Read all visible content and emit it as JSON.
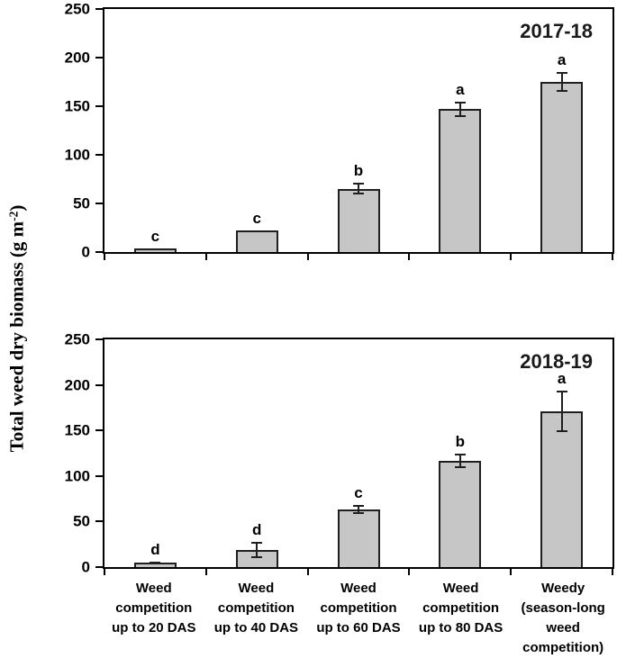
{
  "figure": {
    "y_axis_label": {
      "prefix": "Total weed dry biomass (g m",
      "superscript": "-2",
      "suffix": ")"
    }
  },
  "x_axis": {
    "tick_label_lines": [
      [
        "Weed",
        "competition",
        "up to 20 DAS"
      ],
      [
        "Weed",
        "competition",
        "up to 40 DAS"
      ],
      [
        "Weed",
        "competition",
        "up to 60 DAS"
      ],
      [
        "Weed",
        "competition",
        "up to 80 DAS"
      ],
      [
        "Weedy",
        "(season-long",
        "weed",
        "competition)"
      ]
    ]
  },
  "chart_data": [
    {
      "type": "bar",
      "title": "2017-18",
      "categories": [
        "Weed competition up to 20 DAS",
        "Weed competition up to 40 DAS",
        "Weed competition up to 60 DAS",
        "Weed competition up to 80 DAS",
        "Weedy (season-long weed competition)"
      ],
      "values": [
        4,
        22,
        65,
        147,
        175
      ],
      "errors": [
        0,
        0,
        6,
        8,
        10
      ],
      "sig_letters": [
        "c",
        "c",
        "b",
        "a",
        "a"
      ],
      "ylabel": "Total weed dry biomass (g m-2)",
      "ylim": [
        0,
        250
      ],
      "yticks": [
        0,
        50,
        100,
        150,
        200,
        250
      ],
      "grid": false,
      "legend": "none",
      "bar_fill": "#c6c6c6",
      "bar_border": "#1f1f1f"
    },
    {
      "type": "bar",
      "title": "2018-19",
      "categories": [
        "Weed competition up to 20 DAS",
        "Weed competition up to 40 DAS",
        "Weed competition up to 60 DAS",
        "Weed competition up to 80 DAS",
        "Weedy (season-long weed competition)"
      ],
      "values": [
        5,
        19,
        63,
        117,
        171
      ],
      "errors": [
        1,
        9,
        5,
        8,
        23
      ],
      "sig_letters": [
        "d",
        "d",
        "c",
        "b",
        "a"
      ],
      "ylabel": "Total weed dry biomass (g m-2)",
      "ylim": [
        0,
        250
      ],
      "yticks": [
        0,
        50,
        100,
        150,
        200,
        250
      ],
      "grid": false,
      "legend": "none",
      "bar_fill": "#c6c6c6",
      "bar_border": "#1f1f1f"
    }
  ]
}
